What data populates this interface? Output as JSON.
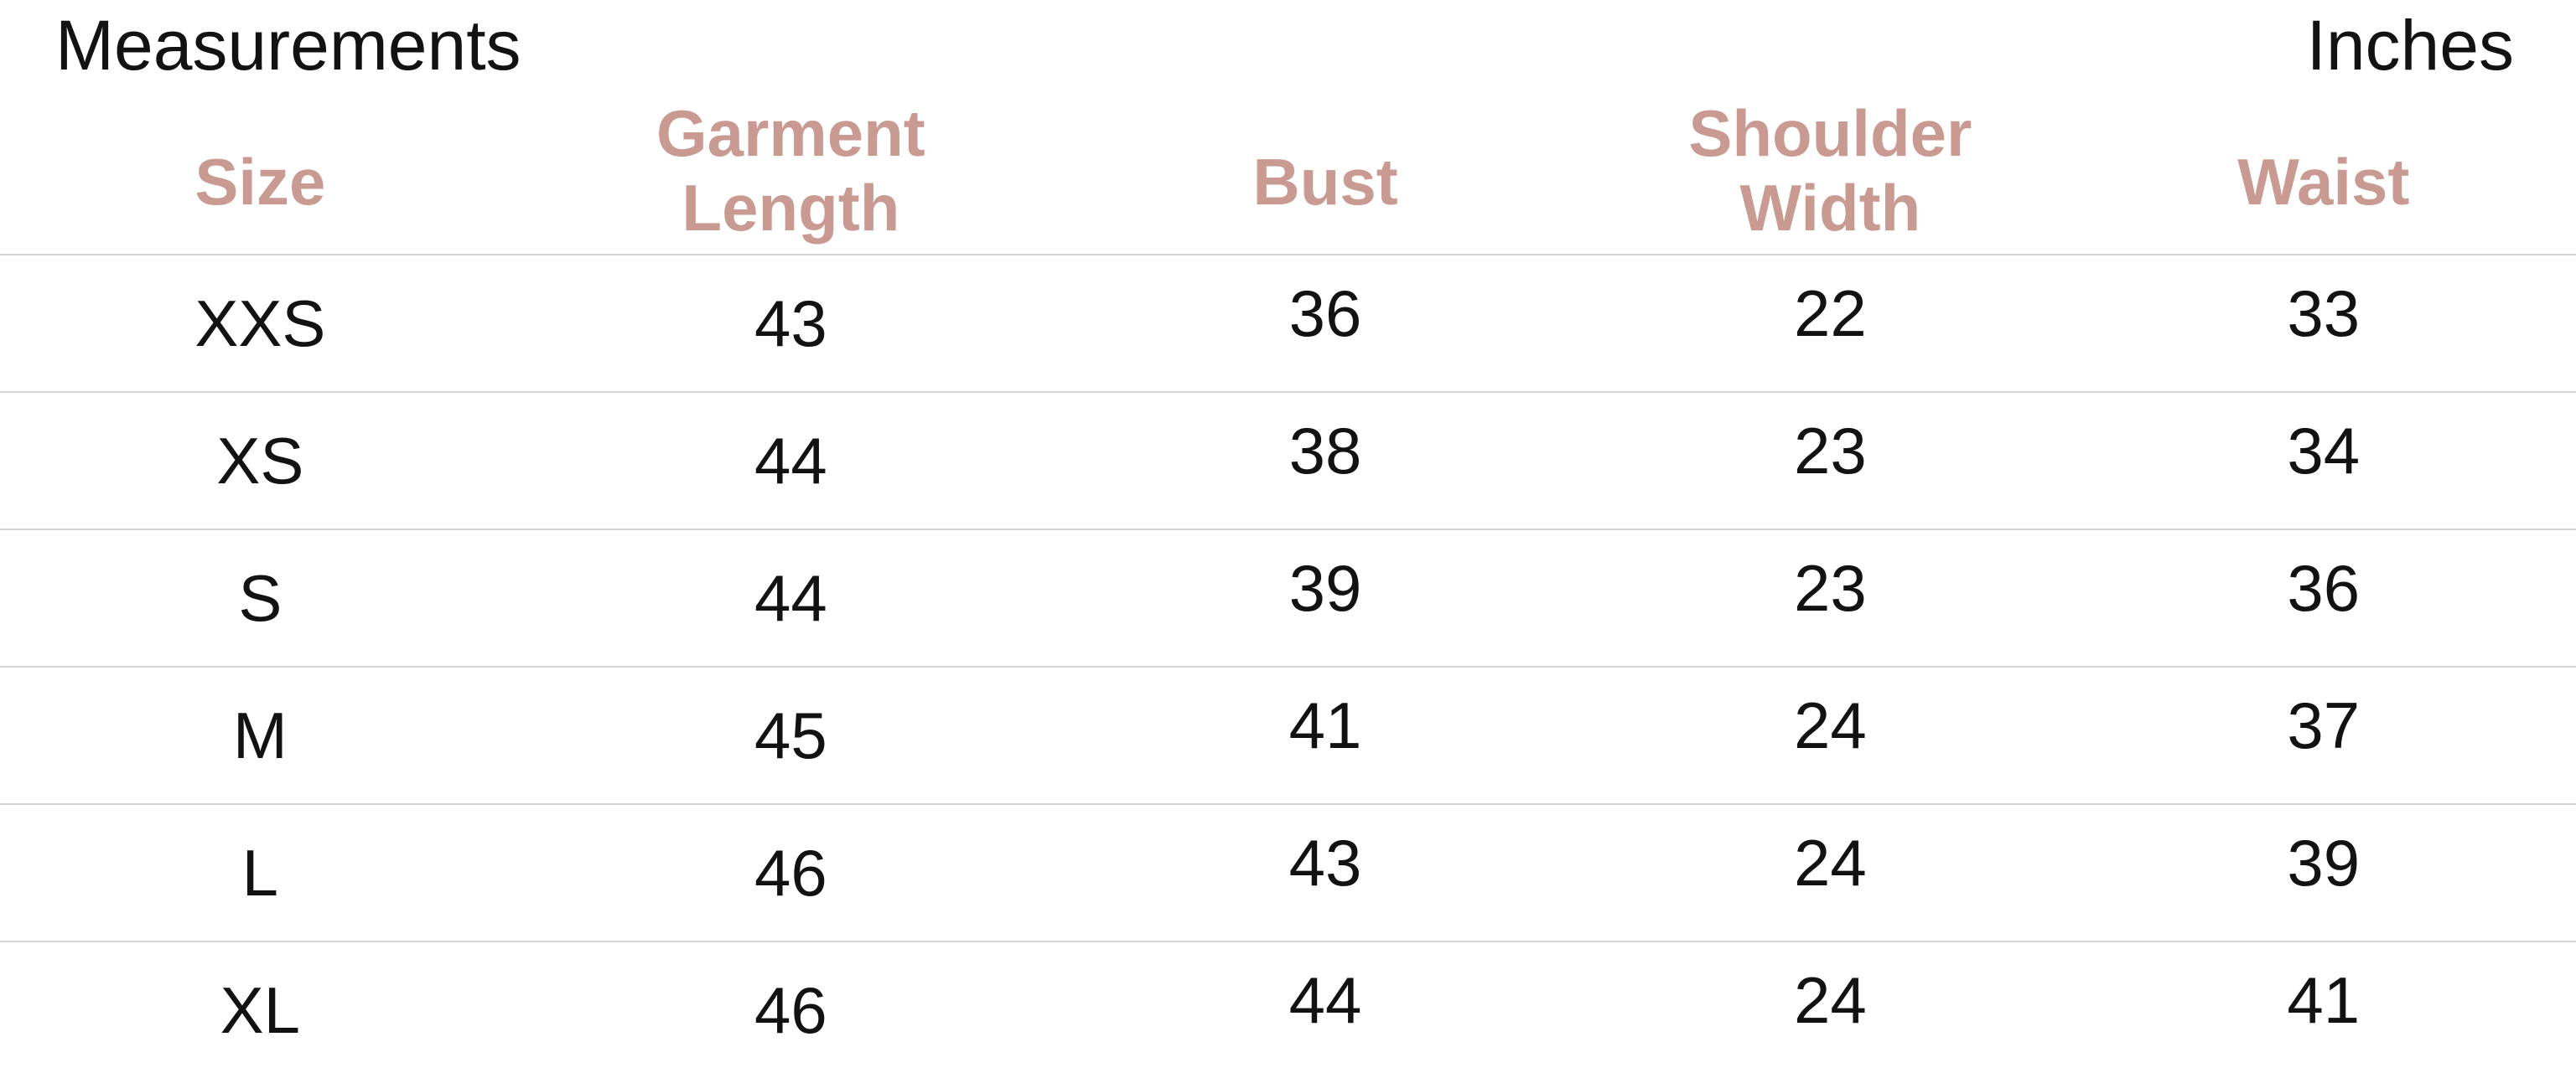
{
  "title": "Measurements",
  "unit_label": "Inches",
  "colors": {
    "header_text": "#c99a92",
    "body_text": "#121212",
    "divider": "#d6d6d6",
    "background": "#ffffff"
  },
  "header_display": [
    "Size",
    "Garment\nLength",
    "Bust",
    "Shoulder\nWidth",
    "Waist"
  ],
  "chart_data": {
    "type": "table",
    "title": "Measurements",
    "unit_label": "Inches",
    "columns": [
      "Size",
      "Garment Length",
      "Bust",
      "Shoulder Width",
      "Waist"
    ],
    "rows": [
      [
        "XXS",
        "43",
        "36",
        "22",
        "33"
      ],
      [
        "XS",
        "44",
        "38",
        "23",
        "34"
      ],
      [
        "S",
        "44",
        "39",
        "23",
        "36"
      ],
      [
        "M",
        "45",
        "41",
        "24",
        "37"
      ],
      [
        "L",
        "46",
        "43",
        "24",
        "39"
      ],
      [
        "XL",
        "46",
        "44",
        "24",
        "41"
      ]
    ]
  }
}
